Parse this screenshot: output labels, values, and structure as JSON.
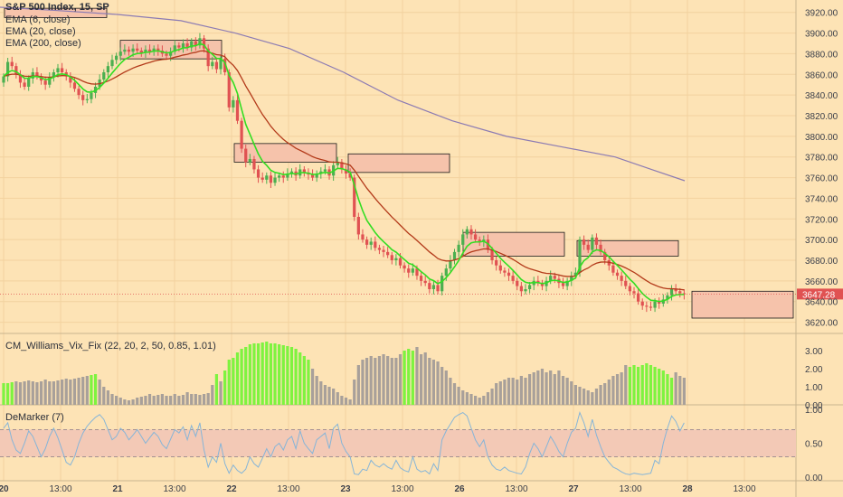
{
  "colors": {
    "background": "#fde3b5",
    "grid": "#f2d29f",
    "up": "#4caf50",
    "down": "#e05252",
    "ema6": "#33dd22",
    "ema20": "#b33a1a",
    "ema200": "#8c7bb3",
    "zone_fill": "#f6c3ab",
    "zone_stroke": "#1a1a1a",
    "vix_high": "#7ef33f",
    "vix_low": "#a8a09a",
    "demarker_line": "#86b5d8",
    "demarker_band": "#f3c9b6",
    "price_tag": "#e05252"
  },
  "main_legend": {
    "title": "S&P 500 Index, 15, SP",
    "ema6": "EMA (6, close)",
    "ema20": "EMA (20, close)",
    "ema200": "EMA (200, close)"
  },
  "vix_legend": "CM_Williams_Vix_Fix (22, 20, 2, 50, 0.85, 1.01)",
  "demarker_legend": "DeMarker (7)",
  "last_price_label": "3647.28",
  "chart_data": [
    {
      "type": "candlestick",
      "title": "S&P 500 Index, 15, SP",
      "x_tick_labels": [
        "20",
        "13:00",
        "21",
        "13:00",
        "22",
        "13:00",
        "23",
        "13:00",
        "26",
        "13:00",
        "27",
        "13:00",
        "28",
        "13:00"
      ],
      "y_ticks": [
        3620,
        3640,
        3660,
        3680,
        3700,
        3720,
        3740,
        3760,
        3780,
        3800,
        3820,
        3840,
        3860,
        3880,
        3900,
        3920
      ],
      "y_tick_labels": [
        "3620.00",
        "3640.00",
        "3660.00",
        "3680.00",
        "3700.00",
        "3720.00",
        "3740.00",
        "3760.00",
        "3780.00",
        "3800.00",
        "3820.00",
        "3840.00",
        "3860.00",
        "3880.00",
        "3900.00",
        "3920.00"
      ],
      "ylim": [
        3610,
        3932
      ],
      "xlim": [
        0,
        880
      ],
      "last_price": 3647.28,
      "session_days": [
        "20",
        "21",
        "22",
        "23",
        "26",
        "27",
        "28"
      ],
      "close": [
        3858,
        3872,
        3868,
        3860,
        3852,
        3848,
        3856,
        3862,
        3858,
        3854,
        3850,
        3857,
        3862,
        3866,
        3862,
        3858,
        3852,
        3846,
        3840,
        3835,
        3836,
        3842,
        3848,
        3855,
        3862,
        3868,
        3874,
        3878,
        3882,
        3884,
        3882,
        3885,
        3883,
        3881,
        3884,
        3882,
        3885,
        3883,
        3880,
        3878,
        3882,
        3888,
        3886,
        3890,
        3886,
        3892,
        3888,
        3895,
        3885,
        3868,
        3872,
        3865,
        3875,
        3862,
        3828,
        3835,
        3815,
        3788,
        3775,
        3778,
        3768,
        3760,
        3758,
        3762,
        3755,
        3760,
        3762,
        3760,
        3764,
        3766,
        3762,
        3768,
        3765,
        3763,
        3760,
        3764,
        3766,
        3768,
        3762,
        3772,
        3775,
        3768,
        3764,
        3760,
        3722,
        3705,
        3700,
        3695,
        3698,
        3692,
        3690,
        3688,
        3685,
        3680,
        3682,
        3675,
        3672,
        3668,
        3672,
        3665,
        3660,
        3658,
        3652,
        3656,
        3650,
        3665,
        3672,
        3680,
        3688,
        3695,
        3705,
        3710,
        3705,
        3700,
        3698,
        3700,
        3690,
        3680,
        3675,
        3670,
        3668,
        3665,
        3660,
        3655,
        3650,
        3652,
        3656,
        3660,
        3658,
        3655,
        3660,
        3665,
        3662,
        3658,
        3655,
        3660,
        3665,
        3668,
        3700,
        3695,
        3690,
        3702,
        3695,
        3688,
        3680,
        3675,
        3668,
        3665,
        3660,
        3655,
        3650,
        3648,
        3640,
        3636,
        3635,
        3634,
        3640,
        3638,
        3642,
        3646,
        3652,
        3650,
        3648,
        3647
      ],
      "ohlc_note": "open of each bar equals previous close; highs and lows follow the visible wicks",
      "series": [
        {
          "name": "EMA (6, close)",
          "type": "line",
          "period": 6
        },
        {
          "name": "EMA (20, close)",
          "type": "line",
          "period": 20
        },
        {
          "name": "EMA (200, close)",
          "type": "line",
          "values_sampled": [
            [
              0,
              3925
            ],
            [
              60,
              3922
            ],
            [
              130,
              3918
            ],
            [
              200,
              3912
            ],
            [
              260,
              3900
            ],
            [
              320,
              3885
            ],
            [
              380,
              3862
            ],
            [
              440,
              3835
            ],
            [
              500,
              3815
            ],
            [
              560,
              3800
            ],
            [
              620,
              3790
            ],
            [
              680,
              3780
            ],
            [
              720,
              3768
            ],
            [
              757,
              3757
            ]
          ]
        }
      ],
      "zones": [
        {
          "x0": 5,
          "x1": 118,
          "y_top": 3924,
          "y_bottom": 3915
        },
        {
          "x0": 133,
          "x1": 245,
          "y_top": 3893,
          "y_bottom": 3875
        },
        {
          "x0": 259,
          "x1": 372,
          "y_top": 3793,
          "y_bottom": 3775
        },
        {
          "x0": 385,
          "x1": 497,
          "y_top": 3783,
          "y_bottom": 3765
        },
        {
          "x0": 512,
          "x1": 624,
          "y_top": 3707,
          "y_bottom": 3684
        },
        {
          "x0": 638,
          "x1": 750,
          "y_top": 3699,
          "y_bottom": 3684
        },
        {
          "x0": 765,
          "x1": 877,
          "y_top": 3650,
          "y_bottom": 3624
        }
      ]
    },
    {
      "type": "bar",
      "title": "CM_Williams_Vix_Fix (22, 20, 2, 50, 0.85, 1.01)",
      "y_ticks": [
        0,
        1,
        2,
        3
      ],
      "y_tick_labels": [
        "0.00",
        "1.00",
        "2.00",
        "3.00"
      ],
      "ylim": [
        0,
        3.6
      ],
      "values": [
        1.2,
        1.2,
        1.25,
        1.3,
        1.25,
        1.3,
        1.35,
        1.3,
        1.25,
        1.3,
        1.4,
        1.3,
        1.3,
        1.35,
        1.4,
        1.45,
        1.4,
        1.45,
        1.5,
        1.55,
        1.6,
        1.65,
        1.7,
        1.4,
        1.0,
        0.8,
        0.6,
        0.5,
        0.4,
        0.3,
        0.25,
        0.3,
        0.4,
        0.45,
        0.5,
        0.6,
        0.5,
        0.55,
        0.6,
        0.5,
        0.5,
        0.6,
        0.5,
        0.55,
        0.7,
        0.6,
        0.6,
        0.55,
        0.6,
        0.65,
        1.1,
        1.7,
        1.3,
        1.9,
        2.5,
        2.6,
        2.9,
        3.1,
        3.2,
        3.35,
        3.4,
        3.4,
        3.45,
        3.5,
        3.4,
        3.4,
        3.35,
        3.3,
        3.25,
        3.2,
        3.1,
        2.9,
        2.7,
        2.5,
        2.0,
        1.6,
        1.3,
        1.1,
        1.0,
        0.9,
        0.7,
        0.5,
        0.4,
        0.3,
        1.4,
        2.2,
        2.5,
        2.6,
        2.7,
        2.6,
        2.7,
        2.8,
        2.7,
        2.6,
        2.6,
        2.8,
        3.0,
        3.1,
        3.0,
        3.2,
        2.8,
        2.9,
        2.6,
        2.5,
        2.4,
        2.1,
        1.9,
        1.5,
        1.2,
        1.0,
        0.8,
        0.7,
        0.6,
        0.5,
        0.4,
        0.5,
        0.7,
        0.9,
        1.2,
        1.3,
        1.4,
        1.5,
        1.5,
        1.4,
        1.6,
        1.5,
        1.7,
        1.8,
        1.9,
        2.0,
        1.8,
        1.9,
        1.7,
        1.9,
        1.6,
        1.5,
        1.3,
        1.1,
        1.0,
        0.9,
        0.8,
        0.7,
        0.9,
        1.1,
        1.2,
        1.4,
        1.6,
        1.7,
        1.8,
        2.2,
        2.1,
        2.2,
        2.1,
        2.2,
        2.3,
        2.2,
        2.1,
        2.0,
        1.9,
        1.7,
        1.5,
        1.8,
        1.6,
        1.5
      ],
      "highlight_rule": "bars shown in bright green exceed the upper band; others grey",
      "highlight": [
        1,
        1,
        1,
        0,
        0,
        0,
        0,
        0,
        0,
        0,
        0,
        0,
        0,
        0,
        0,
        0,
        0,
        0,
        0,
        0,
        0,
        1,
        1,
        0,
        0,
        0,
        0,
        0,
        0,
        0,
        0,
        0,
        0,
        0,
        0,
        0,
        0,
        0,
        0,
        0,
        0,
        0,
        0,
        0,
        0,
        0,
        0,
        0,
        0,
        0,
        0,
        1,
        0,
        1,
        1,
        1,
        1,
        1,
        1,
        1,
        1,
        1,
        1,
        1,
        1,
        1,
        1,
        1,
        1,
        1,
        1,
        1,
        1,
        1,
        0,
        0,
        0,
        0,
        0,
        0,
        0,
        0,
        0,
        0,
        0,
        0,
        0,
        0,
        0,
        0,
        0,
        0,
        0,
        0,
        0,
        0,
        1,
        1,
        1,
        0,
        0,
        0,
        0,
        0,
        0,
        0,
        0,
        0,
        0,
        0,
        0,
        0,
        0,
        0,
        0,
        0,
        0,
        0,
        0,
        0,
        0,
        0,
        0,
        0,
        0,
        0,
        0,
        0,
        0,
        0,
        0,
        0,
        0,
        0,
        0,
        0,
        0,
        0,
        0,
        0,
        0,
        0,
        0,
        0,
        0,
        0,
        0,
        0,
        0,
        0,
        1,
        1,
        1,
        1,
        1,
        1,
        1,
        1,
        1,
        1,
        1,
        0,
        0,
        0,
        0,
        0
      ]
    },
    {
      "type": "line",
      "title": "DeMarker (7)",
      "y_ticks": [
        0,
        0.5,
        1
      ],
      "y_tick_labels": [
        "0.00",
        "0.50",
        "1.00"
      ],
      "ylim": [
        -0.05,
        1.05
      ],
      "band": [
        0.3,
        0.7
      ],
      "values": [
        0.72,
        0.8,
        0.55,
        0.4,
        0.35,
        0.5,
        0.68,
        0.6,
        0.45,
        0.3,
        0.42,
        0.6,
        0.72,
        0.58,
        0.4,
        0.22,
        0.18,
        0.3,
        0.5,
        0.65,
        0.75,
        0.82,
        0.88,
        0.92,
        0.85,
        0.7,
        0.55,
        0.6,
        0.72,
        0.66,
        0.55,
        0.62,
        0.7,
        0.6,
        0.5,
        0.58,
        0.66,
        0.6,
        0.48,
        0.42,
        0.56,
        0.7,
        0.65,
        0.74,
        0.55,
        0.76,
        0.6,
        0.8,
        0.4,
        0.15,
        0.3,
        0.22,
        0.5,
        0.2,
        0.06,
        0.18,
        0.1,
        0.06,
        0.12,
        0.3,
        0.2,
        0.15,
        0.28,
        0.42,
        0.3,
        0.45,
        0.5,
        0.4,
        0.55,
        0.6,
        0.42,
        0.68,
        0.5,
        0.42,
        0.35,
        0.55,
        0.6,
        0.65,
        0.42,
        0.72,
        0.78,
        0.5,
        0.38,
        0.3,
        0.05,
        0.04,
        0.12,
        0.1,
        0.25,
        0.18,
        0.15,
        0.2,
        0.15,
        0.12,
        0.25,
        0.14,
        0.1,
        0.08,
        0.3,
        0.12,
        0.08,
        0.1,
        0.05,
        0.2,
        0.1,
        0.55,
        0.68,
        0.78,
        0.88,
        0.92,
        0.95,
        0.9,
        0.72,
        0.55,
        0.45,
        0.55,
        0.3,
        0.18,
        0.12,
        0.1,
        0.15,
        0.1,
        0.08,
        0.06,
        0.05,
        0.15,
        0.35,
        0.5,
        0.42,
        0.3,
        0.45,
        0.6,
        0.5,
        0.38,
        0.3,
        0.5,
        0.66,
        0.72,
        0.95,
        0.8,
        0.6,
        0.85,
        0.62,
        0.45,
        0.3,
        0.22,
        0.15,
        0.12,
        0.08,
        0.05,
        0.04,
        0.06,
        0.05,
        0.04,
        0.05,
        0.06,
        0.25,
        0.2,
        0.5,
        0.72,
        0.9,
        0.82,
        0.68,
        0.8
      ]
    }
  ]
}
